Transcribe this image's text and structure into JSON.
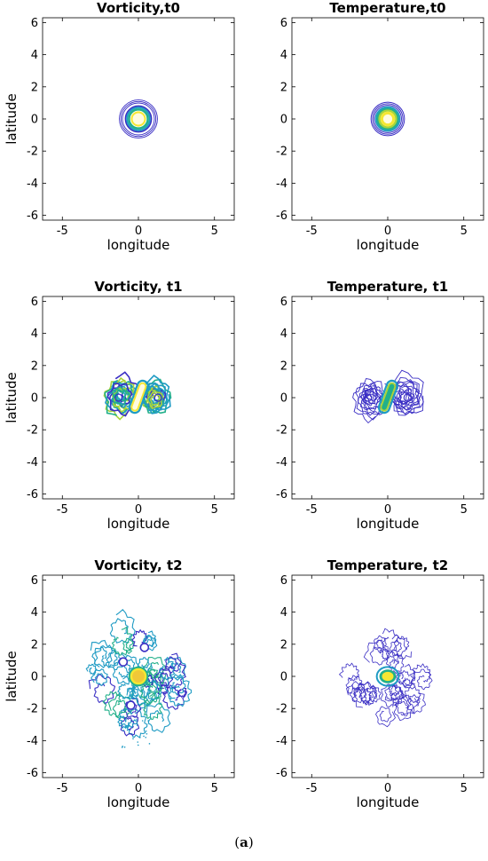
{
  "caption": {
    "open": "(",
    "label": "a",
    "close": ")"
  },
  "colors": {
    "c_blue": "#3a2ec4",
    "c_teal": "#1f9bc4",
    "c_green": "#22b08a",
    "c_yellow": "#f5e733",
    "c_lime": "#a9d43a"
  },
  "chart_data": [
    {
      "type": "contour",
      "title": "Vorticity,t0",
      "xlabel": "longitude",
      "ylabel": "latitude",
      "xlim": [
        -6.3,
        6.3
      ],
      "ylim": [
        -6.3,
        6.3
      ],
      "xticks": [
        "-5",
        "0",
        "5"
      ],
      "yticks": [
        "6",
        "4",
        "2",
        "0",
        "-2",
        "-4",
        "-6"
      ],
      "pattern": "ring",
      "center": [
        0,
        0
      ]
    },
    {
      "type": "contour",
      "title": "Temperature,t0",
      "xlabel": "longitude",
      "ylabel": "",
      "xlim": [
        -6.3,
        6.3
      ],
      "ylim": [
        -6.3,
        6.3
      ],
      "xticks": [
        "-5",
        "0",
        "5"
      ],
      "yticks": [
        "6",
        "4",
        "2",
        "0",
        "-2",
        "-4",
        "-6"
      ],
      "pattern": "disk",
      "center": [
        0,
        0
      ]
    },
    {
      "type": "contour",
      "title": "Vorticity, t1",
      "xlabel": "longitude",
      "ylabel": "latitude",
      "xlim": [
        -6.3,
        6.3
      ],
      "ylim": [
        -6.3,
        6.3
      ],
      "xticks": [
        "-5",
        "0",
        "5"
      ],
      "yticks": [
        "6",
        "4",
        "2",
        "0",
        "-2",
        "-4",
        "-6"
      ],
      "pattern": "dipole-dense",
      "center": [
        0,
        0
      ]
    },
    {
      "type": "contour",
      "title": "Temperature, t1",
      "xlabel": "longitude",
      "ylabel": "",
      "xlim": [
        -6.3,
        6.3
      ],
      "ylim": [
        -6.3,
        6.3
      ],
      "xticks": [
        "-5",
        "0",
        "5"
      ],
      "yticks": [
        "6",
        "4",
        "2",
        "0",
        "-2",
        "-4",
        "-6"
      ],
      "pattern": "dipole-sparse",
      "center": [
        0,
        0
      ]
    },
    {
      "type": "contour",
      "title": "Vorticity, t2",
      "xlabel": "longitude",
      "ylabel": "latitude",
      "xlim": [
        -6.3,
        6.3
      ],
      "ylim": [
        -6.3,
        6.3
      ],
      "xticks": [
        "-5",
        "0",
        "5"
      ],
      "yticks": [
        "6",
        "4",
        "2",
        "0",
        "-2",
        "-4",
        "-6"
      ],
      "pattern": "turbulent-dense",
      "center": [
        0,
        0
      ]
    },
    {
      "type": "contour",
      "title": "Temperature, t2",
      "xlabel": "longitude",
      "ylabel": "",
      "xlim": [
        -6.3,
        6.3
      ],
      "ylim": [
        -6.3,
        6.3
      ],
      "xticks": [
        "-5",
        "0",
        "5"
      ],
      "yticks": [
        "6",
        "4",
        "2",
        "0",
        "-2",
        "-4",
        "-6"
      ],
      "pattern": "turbulent-sparse",
      "center": [
        0,
        0
      ]
    }
  ]
}
